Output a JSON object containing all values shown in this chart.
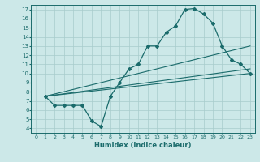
{
  "xlabel": "Humidex (Indice chaleur)",
  "bg_color": "#cce8e8",
  "grid_color": "#a8cccc",
  "line_color": "#1a6b6b",
  "xlim": [
    -0.5,
    23.5
  ],
  "ylim": [
    3.5,
    17.5
  ],
  "xticks": [
    0,
    1,
    2,
    3,
    4,
    5,
    6,
    7,
    8,
    9,
    10,
    11,
    12,
    13,
    14,
    15,
    16,
    17,
    18,
    19,
    20,
    21,
    22,
    23
  ],
  "yticks": [
    4,
    5,
    6,
    7,
    8,
    9,
    10,
    11,
    12,
    13,
    14,
    15,
    16,
    17
  ],
  "curve_x": [
    1,
    2,
    3,
    4,
    5,
    6,
    7,
    8,
    9,
    10,
    11,
    12,
    13,
    14,
    15,
    16,
    17,
    18,
    19,
    20,
    21,
    22,
    23
  ],
  "curve_y": [
    7.5,
    6.5,
    6.5,
    6.5,
    6.5,
    4.8,
    4.2,
    7.5,
    9.0,
    10.5,
    11.0,
    13.0,
    13.0,
    14.5,
    15.2,
    17.0,
    17.1,
    16.5,
    15.5,
    13.0,
    11.5,
    11.0,
    10.0
  ],
  "line1_x": [
    1,
    23
  ],
  "line1_y": [
    7.5,
    10.0
  ],
  "line2_x": [
    1,
    23
  ],
  "line2_y": [
    7.5,
    13.0
  ],
  "line3_x": [
    1,
    23
  ],
  "line3_y": [
    7.5,
    10.5
  ]
}
